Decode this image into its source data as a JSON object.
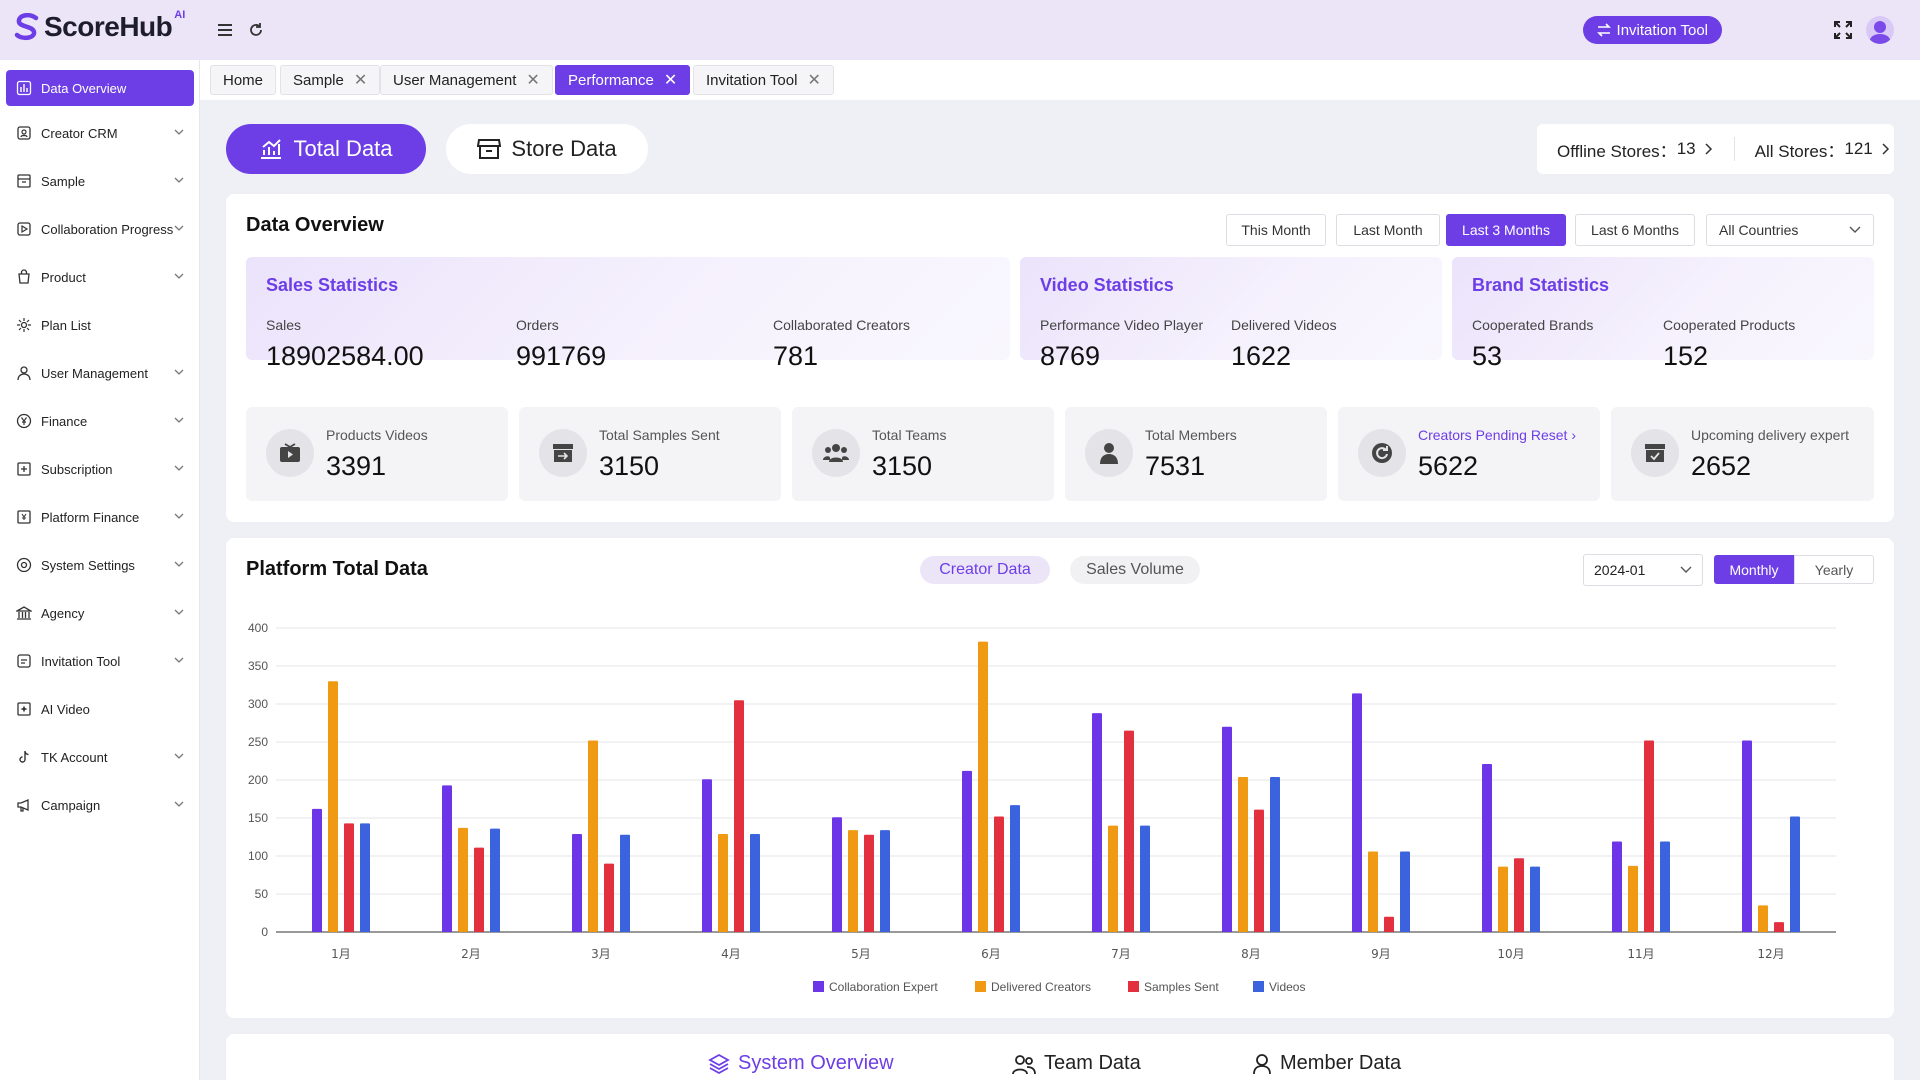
{
  "app": {
    "name": "ScoreHub",
    "superscript": "AI"
  },
  "header": {
    "invitation_button": "Invitation Tool"
  },
  "sidebar": {
    "items": [
      {
        "label": "Data Overview",
        "icon": "bar-chart-icon",
        "active": true
      },
      {
        "label": "Creator CRM",
        "icon": "contact-card-icon"
      },
      {
        "label": "Sample",
        "icon": "box-icon"
      },
      {
        "label": "Collaboration Progress",
        "icon": "play-square-icon"
      },
      {
        "label": "Product",
        "icon": "shopping-bag-icon"
      },
      {
        "label": "Plan List",
        "icon": "settings-list-icon"
      },
      {
        "label": "User Management",
        "icon": "user-icon"
      },
      {
        "label": "Finance",
        "icon": "yen-circle-icon"
      },
      {
        "label": "Subscription",
        "icon": "plus-square-icon"
      },
      {
        "label": "Platform Finance",
        "icon": "finance-doc-icon"
      },
      {
        "label": "System Settings",
        "icon": "gear-icon"
      },
      {
        "label": "Agency",
        "icon": "bank-icon"
      },
      {
        "label": "Invitation Tool",
        "icon": "invite-icon"
      },
      {
        "label": "AI Video",
        "icon": "ai-video-icon"
      },
      {
        "label": "TK Account",
        "icon": "tiktok-icon"
      },
      {
        "label": "Campaign",
        "icon": "megaphone-icon"
      }
    ]
  },
  "tabs": [
    {
      "label": "Home",
      "closable": false
    },
    {
      "label": "Sample",
      "closable": true
    },
    {
      "label": "User Management",
      "closable": true
    },
    {
      "label": "Performance",
      "closable": true,
      "active": true
    },
    {
      "label": "Invitation Tool",
      "closable": true
    }
  ],
  "top_switch": {
    "total": "Total Data",
    "store": "Store Data"
  },
  "stores": {
    "offline_label": "Offline Stores：",
    "offline_value": "13",
    "all_label": "All Stores：",
    "all_value": "121"
  },
  "overview": {
    "title": "Data Overview",
    "filters": [
      "This Month",
      "Last Month",
      "Last 3 Months",
      "Last 6 Months"
    ],
    "active_filter": "Last 3 Months",
    "country": "All Countries",
    "sales": {
      "title": "Sales Statistics",
      "sales_label": "Sales",
      "sales_value": "18902584.00",
      "orders_label": "Orders",
      "orders_value": "991769",
      "creators_label": "Collaborated Creators",
      "creators_value": "781"
    },
    "video": {
      "title": "Video Statistics",
      "player_label": "Performance Video Player",
      "player_value": "8769",
      "delivered_label": "Delivered Videos",
      "delivered_value": "1622"
    },
    "brand": {
      "title": "Brand Statistics",
      "brands_label": "Cooperated Brands",
      "brands_value": "53",
      "products_label": "Cooperated Products",
      "products_value": "152"
    },
    "metrics": [
      {
        "label": "Products Videos",
        "value": "3391",
        "icon": "video-box-icon"
      },
      {
        "label": "Total Samples Sent",
        "value": "3150",
        "icon": "archive-icon"
      },
      {
        "label": "Total Teams",
        "value": "3150",
        "icon": "team-icon"
      },
      {
        "label": "Total Members",
        "value": "7531",
        "icon": "member-icon"
      },
      {
        "label": "Creators Pending Reset",
        "value": "5622",
        "icon": "reset-icon",
        "link": true
      },
      {
        "label": "Upcoming delivery expert",
        "value": "2652",
        "icon": "delivery-box-icon"
      }
    ]
  },
  "platform": {
    "title": "Platform Total Data",
    "segments": [
      "Creator Data",
      "Sales Volume"
    ],
    "active_segment": "Creator Data",
    "date": "2024-01",
    "period": [
      "Monthly",
      "Yearly"
    ],
    "active_period": "Monthly"
  },
  "chart_data": {
    "type": "bar",
    "categories": [
      "1月",
      "2月",
      "3月",
      "4月",
      "5月",
      "6月",
      "7月",
      "8月",
      "9月",
      "10月",
      "11月",
      "12月"
    ],
    "ylim": [
      0,
      400
    ],
    "yticks": [
      0,
      50,
      100,
      150,
      200,
      250,
      300,
      350,
      400
    ],
    "grid": true,
    "legend_position": "bottom",
    "series": [
      {
        "name": "Collaboration Expert",
        "color": "#6d35e8",
        "values": [
          162,
          193,
          129,
          201,
          151,
          212,
          288,
          270,
          314,
          221,
          119,
          252
        ]
      },
      {
        "name": "Delivered Creators",
        "color": "#ef9a12",
        "values": [
          330,
          137,
          252,
          129,
          134,
          382,
          140,
          204,
          106,
          86,
          87,
          35
        ]
      },
      {
        "name": "Samples Sent",
        "color": "#e2303f",
        "values": [
          143,
          111,
          90,
          305,
          128,
          152,
          265,
          161,
          20,
          97,
          252,
          13
        ]
      },
      {
        "name": "Videos",
        "color": "#3a63dd",
        "values": [
          143,
          136,
          128,
          129,
          134,
          167,
          140,
          204,
          106,
          86,
          119,
          152
        ]
      }
    ]
  },
  "bottom_tabs": [
    {
      "label": "System Overview",
      "icon": "layers-icon",
      "active": true
    },
    {
      "label": "Team Data",
      "icon": "team-outline-icon"
    },
    {
      "label": "Member Data",
      "icon": "person-outline-icon"
    }
  ],
  "colors": {
    "accent": "#6d3ee6",
    "header_bg": "#ece5f8"
  }
}
